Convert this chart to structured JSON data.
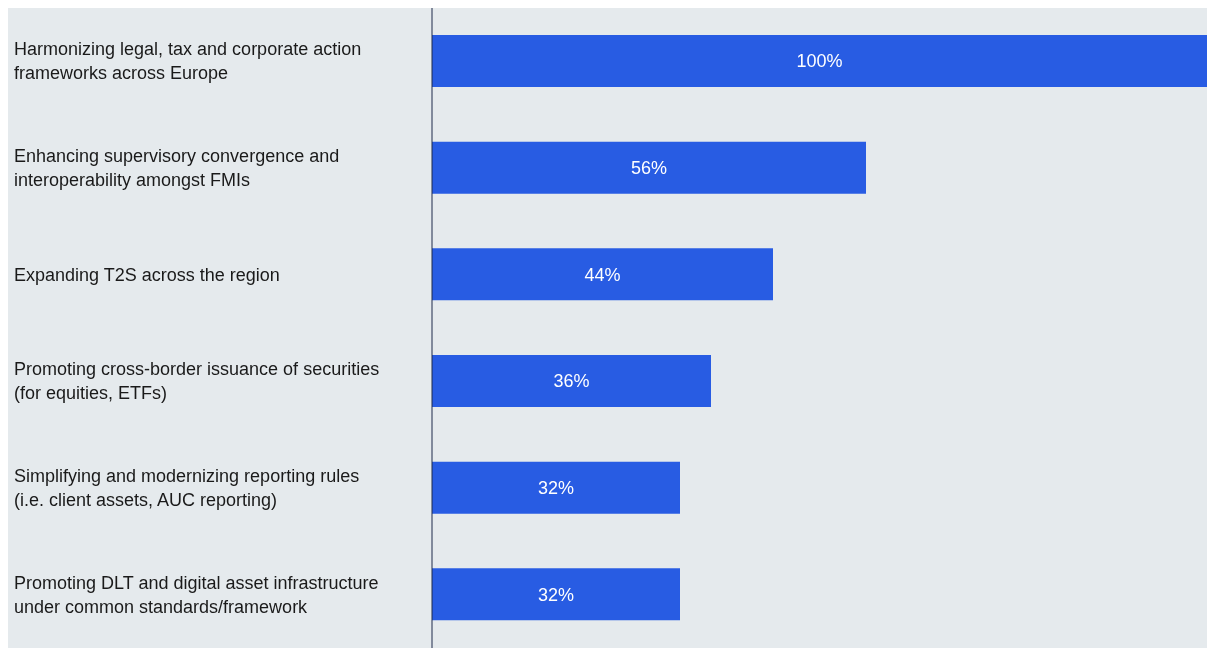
{
  "chart_data": {
    "type": "bar",
    "orientation": "horizontal",
    "categories": [
      "Harmonizing legal, tax and corporate action frameworks across Europe",
      "Enhancing supervisory convergence and interoperability amongst FMIs",
      "Expanding T2S across the region",
      "Promoting cross-border issuance of securities (for equities, ETFs)",
      "Simplifying and modernizing reporting rules (i.e. client assets, AUC reporting)",
      "Promoting DLT and digital asset infrastructure under common standards/framework"
    ],
    "values": [
      100,
      56,
      44,
      36,
      32,
      32
    ],
    "value_labels": [
      "100%",
      "56%",
      "44%",
      "36%",
      "32%",
      "32%"
    ],
    "color": "#285ce3",
    "xlim": [
      0,
      100
    ],
    "tick_labels": "y",
    "grid": false,
    "legend": false
  }
}
